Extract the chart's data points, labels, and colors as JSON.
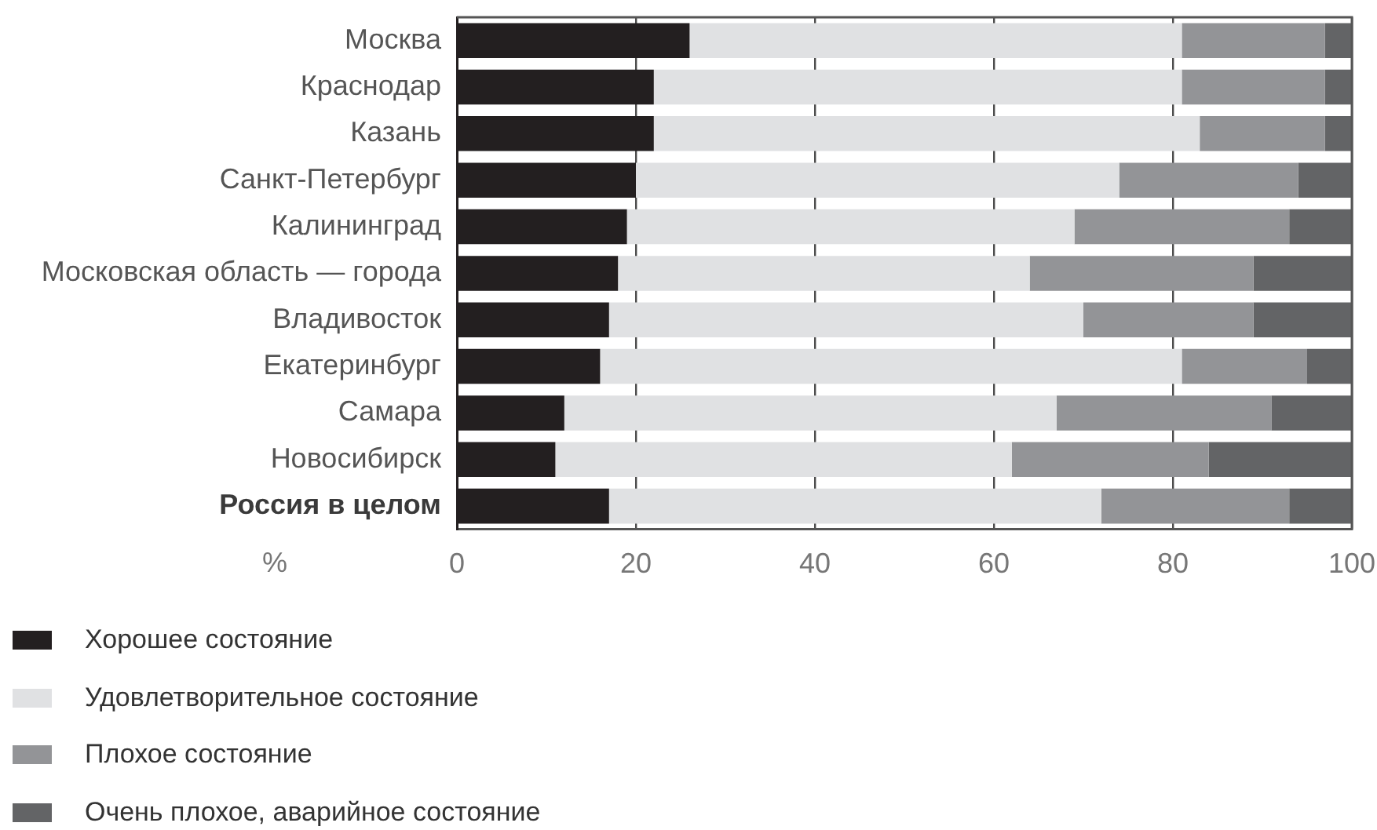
{
  "chart_data": {
    "type": "bar",
    "orientation": "horizontal",
    "stacked": true,
    "categories": [
      "Москва",
      "Краснодар",
      "Казань",
      "Санкт-Петербург",
      "Калининград",
      "Московская область — города",
      "Владивосток",
      "Екатеринбург",
      "Самара",
      "Новосибирск",
      "Россия в целом"
    ],
    "series": [
      {
        "name": "Хорошее состояние",
        "color": "#231f20",
        "values": [
          26,
          22,
          22,
          20,
          19,
          18,
          17,
          16,
          12,
          11,
          17
        ]
      },
      {
        "name": "Удовлетворительное состояние",
        "color": "#e0e1e3",
        "values": [
          55,
          59,
          61,
          54,
          50,
          46,
          53,
          65,
          55,
          51,
          55
        ]
      },
      {
        "name": "Плохое состояние",
        "color": "#939497",
        "values": [
          16,
          16,
          14,
          20,
          24,
          25,
          19,
          14,
          24,
          22,
          21
        ]
      },
      {
        "name": "Очень плохое, аварийное состояние",
        "color": "#636466",
        "values": [
          3,
          3,
          3,
          6,
          7,
          11,
          11,
          5,
          9,
          16,
          7
        ]
      }
    ],
    "xlabel": "%",
    "xlim": [
      0,
      100
    ],
    "xticks": [
      0,
      20,
      40,
      60,
      80,
      100
    ],
    "grid": "x",
    "legend": "bottom"
  }
}
